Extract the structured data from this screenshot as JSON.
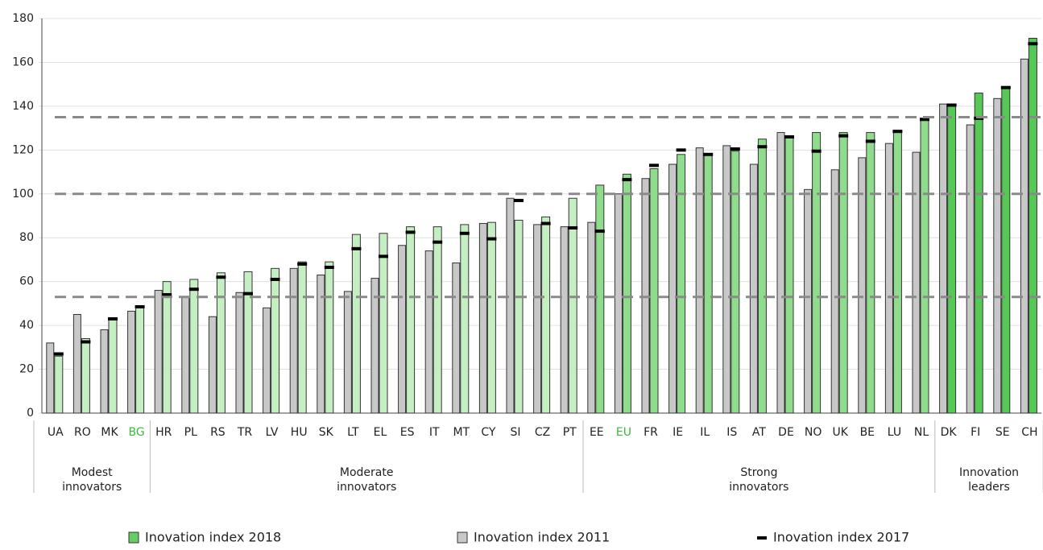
{
  "chart_data": {
    "type": "bar",
    "categories": [
      "UA",
      "RO",
      "MK",
      "BG",
      "HR",
      "PL",
      "RS",
      "TR",
      "LV",
      "HU",
      "SK",
      "LT",
      "EL",
      "ES",
      "IT",
      "MT",
      "CY",
      "SI",
      "CZ",
      "PT",
      "EE",
      "EU",
      "FR",
      "IE",
      "IL",
      "IS",
      "AT",
      "DE",
      "NO",
      "UK",
      "BE",
      "LU",
      "NL",
      "DK",
      "FI",
      "SE",
      "CH"
    ],
    "highlighted": [
      3,
      21
    ],
    "highlight_color": "#3cb83c",
    "series": [
      {
        "name": "Inovation index 2018",
        "color": "#66cc66",
        "values": [
          26,
          34,
          43,
          49,
          60,
          61,
          64,
          64.5,
          66,
          69,
          69,
          81.5,
          82,
          85,
          85,
          86,
          87,
          88,
          89.5,
          98,
          104,
          109,
          111.5,
          118,
          118,
          119.5,
          125,
          126,
          128,
          128,
          128,
          129,
          133.5,
          140.5,
          146,
          149,
          171
        ]
      },
      {
        "name": "Inovation index 2011",
        "color": "#c8c8c8",
        "values": [
          32,
          45,
          38,
          46.5,
          56,
          53,
          44,
          55,
          48,
          66,
          63,
          55.5,
          61.5,
          76.5,
          74,
          68.5,
          86.5,
          98,
          86,
          85,
          87,
          100,
          107,
          113.5,
          121,
          122,
          113.5,
          128,
          102,
          111,
          116.5,
          123,
          119,
          141,
          131.5,
          143.5,
          161.5
        ]
      },
      {
        "name": "Inovation index 2017",
        "color": "#000000",
        "values": [
          27,
          32.5,
          43,
          48.5,
          54,
          56.5,
          62,
          54.5,
          61,
          68,
          66.5,
          75,
          71.5,
          82.5,
          78,
          82,
          79.5,
          97,
          86.5,
          84.5,
          83,
          106.5,
          113,
          120,
          118,
          120.5,
          121.5,
          126,
          119.5,
          126.5,
          124,
          128.5,
          134,
          140.5,
          134.5,
          148.5,
          168.5
        ]
      }
    ],
    "groups": [
      {
        "label": "Modest innovators",
        "size": 4,
        "color": "#c6eec3"
      },
      {
        "label": "Moderate innovators",
        "size": 16,
        "color": "#c6eec3"
      },
      {
        "label": "Strong innovators",
        "size": 13,
        "color": "#8fdc8c"
      },
      {
        "label": "Innovation leaders",
        "size": 4,
        "color": "#55c855"
      }
    ],
    "reference_lines": [
      53,
      100,
      135
    ],
    "ylim": [
      0,
      180
    ],
    "yticks": [
      0,
      20,
      40,
      60,
      80,
      100,
      120,
      140,
      160,
      180
    ],
    "grid": true
  }
}
